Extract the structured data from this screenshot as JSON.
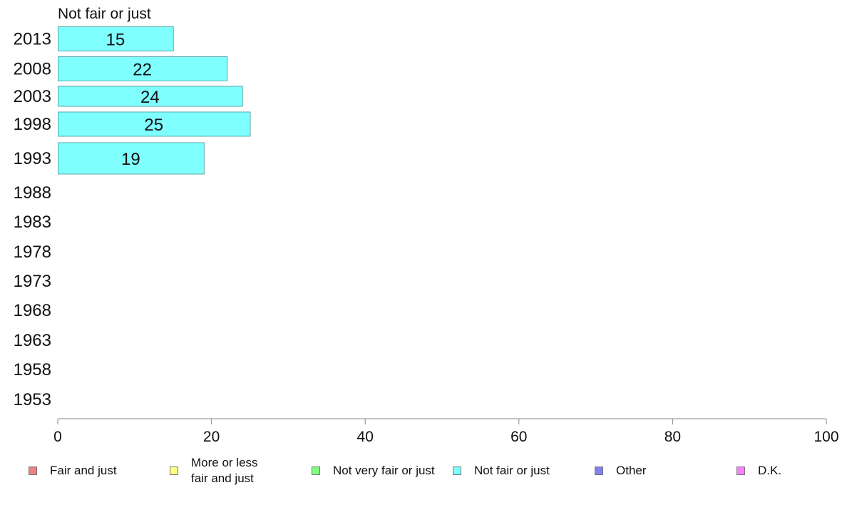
{
  "chart_data": {
    "type": "bar",
    "orientation": "horizontal",
    "title": "Not fair or just",
    "categories": [
      "2013",
      "2008",
      "2003",
      "1998",
      "1993",
      "1988",
      "1983",
      "1978",
      "1973",
      "1968",
      "1963",
      "1958",
      "1953"
    ],
    "series": [
      {
        "name": "Not fair or just",
        "values": [
          15,
          22,
          24,
          25,
          19,
          null,
          null,
          null,
          null,
          null,
          null,
          null,
          null
        ],
        "color": "#80ffff"
      }
    ],
    "xlabel": "",
    "ylabel": "",
    "xlim": [
      0,
      100
    ],
    "xticks": [
      "0",
      "20",
      "40",
      "60",
      "80",
      "100"
    ],
    "grid": false,
    "legend_position": "bottom"
  },
  "legend": {
    "items": [
      {
        "label": "Fair and just",
        "color": "#f08080"
      },
      {
        "label": "More or less\nfair and just",
        "color": "#ffff80"
      },
      {
        "label": "Not very fair or just",
        "color": "#80ff80"
      },
      {
        "label": "Not fair or just",
        "color": "#80ffff"
      },
      {
        "label": "Other",
        "color": "#8080f0"
      },
      {
        "label": "D.K.",
        "color": "#ff80ff"
      }
    ]
  }
}
